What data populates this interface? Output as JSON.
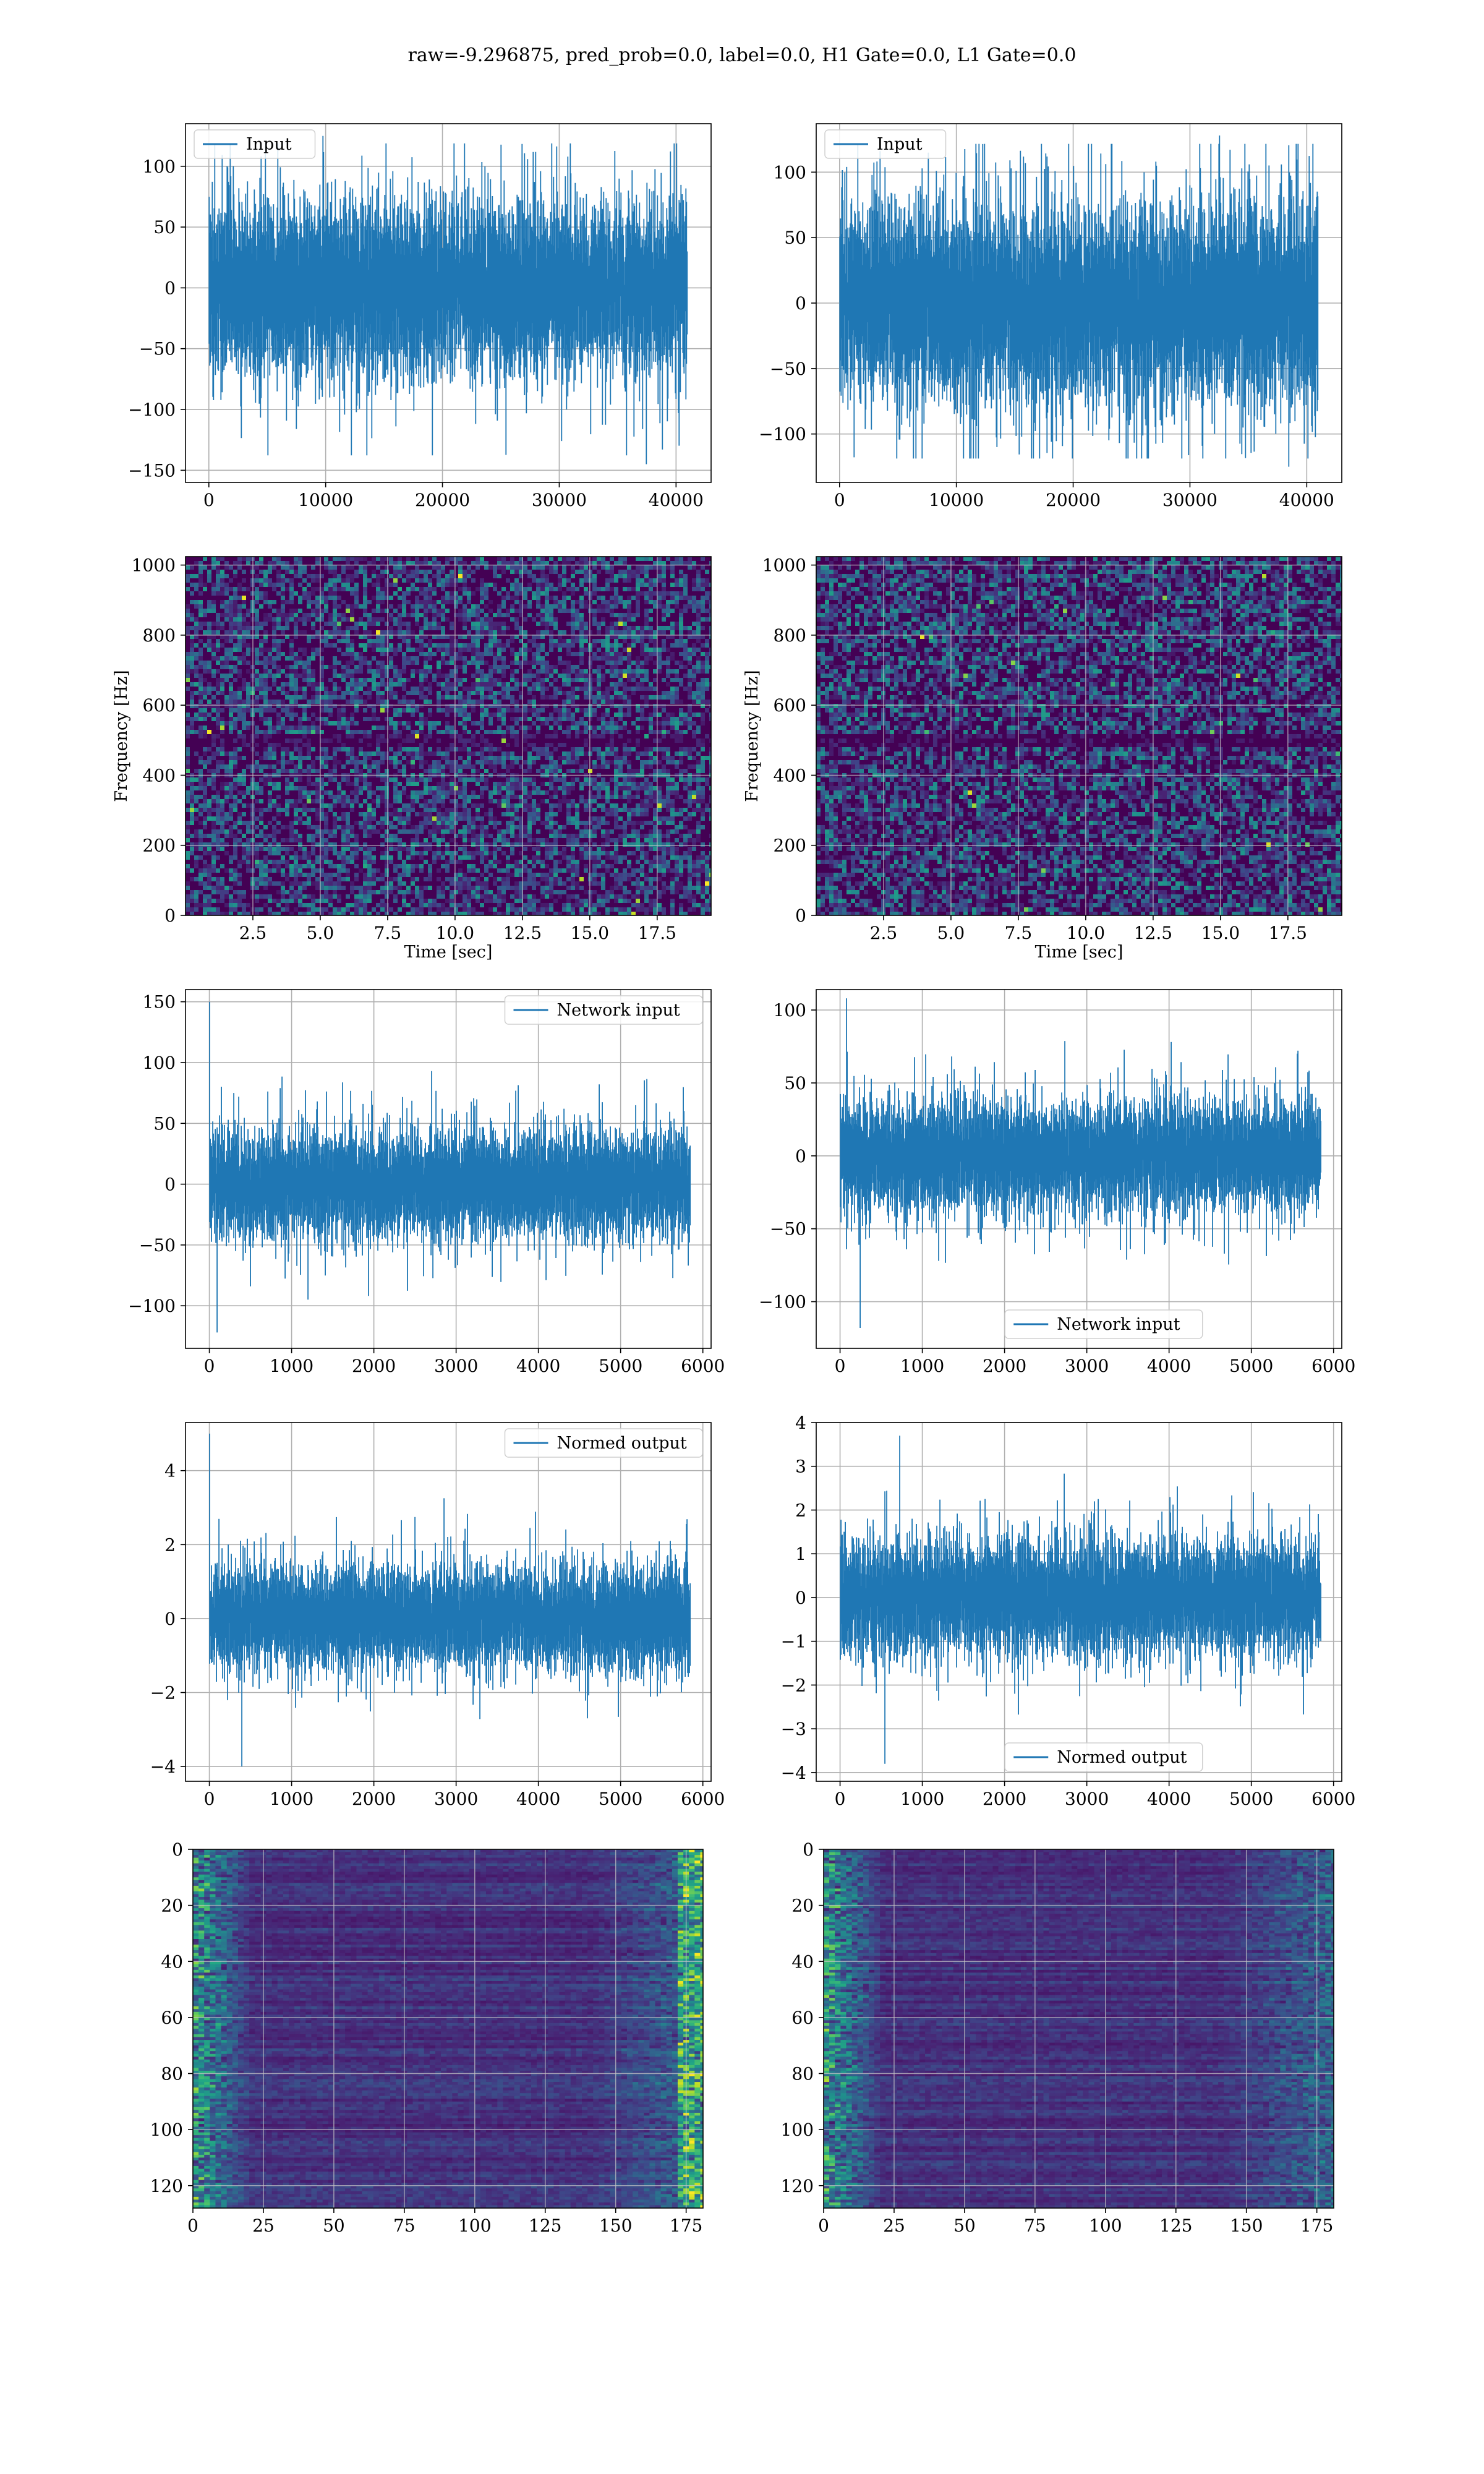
{
  "title": "raw=-9.296875, pred_prob=0.0, label=0.0, H1 Gate=0.0, L1 Gate=0.0",
  "colors": {
    "series": "#1f77b4",
    "grid": "#b0b0b0",
    "viridis_dark": "#440154"
  },
  "chart_data": [
    {
      "id": "p1",
      "type": "line",
      "legend": "Input",
      "legend_loc": "upper left",
      "xlim": [
        -2000,
        43000
      ],
      "ylim": [
        -160,
        135
      ],
      "xticks": [
        0,
        10000,
        20000,
        30000,
        40000
      ],
      "xtick_labels": [
        "0",
        "10000",
        "20000",
        "30000",
        "40000"
      ],
      "yticks": [
        -150,
        -100,
        -50,
        0,
        50,
        100
      ],
      "ytick_labels": [
        "−150",
        "−100",
        "−50",
        "0",
        "50",
        "100"
      ],
      "n": 40960,
      "band": [
        -65,
        65
      ],
      "peak_max": 125,
      "peak_min": -145,
      "xlabel": "",
      "ylabel": ""
    },
    {
      "id": "p2",
      "type": "line",
      "legend": "Input",
      "legend_loc": "upper left",
      "xlim": [
        -2000,
        43000
      ],
      "ylim": [
        -137,
        137
      ],
      "xticks": [
        0,
        10000,
        20000,
        30000,
        40000
      ],
      "xtick_labels": [
        "0",
        "10000",
        "20000",
        "30000",
        "40000"
      ],
      "yticks": [
        -100,
        -50,
        0,
        50,
        100
      ],
      "ytick_labels": [
        "−100",
        "−50",
        "0",
        "50",
        "100"
      ],
      "n": 40960,
      "band": [
        -70,
        70
      ],
      "peak_max": 128,
      "peak_min": -125,
      "xlabel": "",
      "ylabel": ""
    },
    {
      "id": "p3",
      "type": "heatmap",
      "xlim": [
        0,
        19.5
      ],
      "ylim": [
        0,
        1024
      ],
      "xticks": [
        2.5,
        5.0,
        7.5,
        10.0,
        12.5,
        15.0,
        17.5
      ],
      "xtick_labels": [
        "2.5",
        "5.0",
        "7.5",
        "10.0",
        "12.5",
        "15.0",
        "17.5"
      ],
      "yticks": [
        0,
        200,
        400,
        600,
        800,
        1000
      ],
      "ytick_labels": [
        "0",
        "200",
        "400",
        "600",
        "800",
        "1000"
      ],
      "xlabel": "Time [sec]",
      "ylabel": "Frequency [Hz]"
    },
    {
      "id": "p4",
      "type": "heatmap",
      "xlim": [
        0,
        19.5
      ],
      "ylim": [
        0,
        1024
      ],
      "xticks": [
        2.5,
        5.0,
        7.5,
        10.0,
        12.5,
        15.0,
        17.5
      ],
      "xtick_labels": [
        "2.5",
        "5.0",
        "7.5",
        "10.0",
        "12.5",
        "15.0",
        "17.5"
      ],
      "yticks": [
        0,
        200,
        400,
        600,
        800,
        1000
      ],
      "ytick_labels": [
        "0",
        "200",
        "400",
        "600",
        "800",
        "1000"
      ],
      "xlabel": "Time [sec]",
      "ylabel": "Frequency [Hz]"
    },
    {
      "id": "p5",
      "type": "line",
      "legend": "Network input",
      "legend_loc": "upper right",
      "xlim": [
        -290,
        6100
      ],
      "ylim": [
        -135,
        160
      ],
      "xticks": [
        0,
        1000,
        2000,
        3000,
        4000,
        5000,
        6000
      ],
      "xtick_labels": [
        "0",
        "1000",
        "2000",
        "3000",
        "4000",
        "5000",
        "6000"
      ],
      "yticks": [
        -100,
        -50,
        0,
        50,
        100,
        150
      ],
      "ytick_labels": [
        "−100",
        "−50",
        "0",
        "50",
        "100",
        "150"
      ],
      "n": 5850,
      "band": [
        -40,
        40
      ],
      "peak_max": 150,
      "peak_min": -122,
      "xlabel": "",
      "ylabel": ""
    },
    {
      "id": "p6",
      "type": "line",
      "legend": "Network input",
      "legend_loc": "lower center",
      "xlim": [
        -290,
        6100
      ],
      "ylim": [
        -132,
        114
      ],
      "xticks": [
        0,
        1000,
        2000,
        3000,
        4000,
        5000,
        6000
      ],
      "xtick_labels": [
        "0",
        "1000",
        "2000",
        "3000",
        "4000",
        "5000",
        "6000"
      ],
      "yticks": [
        -100,
        -50,
        0,
        50,
        100
      ],
      "ytick_labels": [
        "−100",
        "−50",
        "0",
        "50",
        "100"
      ],
      "n": 5850,
      "band": [
        -35,
        35
      ],
      "peak_max": 108,
      "peak_min": -118,
      "xlabel": "",
      "ylabel": ""
    },
    {
      "id": "p7",
      "type": "line",
      "legend": "Normed output",
      "legend_loc": "upper right",
      "xlim": [
        -290,
        6100
      ],
      "ylim": [
        -4.4,
        5.3
      ],
      "xticks": [
        0,
        1000,
        2000,
        3000,
        4000,
        5000,
        6000
      ],
      "xtick_labels": [
        "0",
        "1000",
        "2000",
        "3000",
        "4000",
        "5000",
        "6000"
      ],
      "yticks": [
        -4,
        -2,
        0,
        2,
        4
      ],
      "ytick_labels": [
        "−4",
        "−2",
        "0",
        "2",
        "4"
      ],
      "n": 5850,
      "band": [
        -1.3,
        1.3
      ],
      "peak_max": 5.0,
      "peak_min": -4.0,
      "xlabel": "",
      "ylabel": ""
    },
    {
      "id": "p8",
      "type": "line",
      "legend": "Normed output",
      "legend_loc": "lower center",
      "xlim": [
        -290,
        6100
      ],
      "ylim": [
        -4.2,
        4.0
      ],
      "xticks": [
        0,
        1000,
        2000,
        3000,
        4000,
        5000,
        6000
      ],
      "xtick_labels": [
        "0",
        "1000",
        "2000",
        "3000",
        "4000",
        "5000",
        "6000"
      ],
      "yticks": [
        -4,
        -3,
        -2,
        -1,
        0,
        1,
        2,
        3,
        4
      ],
      "ytick_labels": [
        "−4",
        "−3",
        "−2",
        "−1",
        "0",
        "1",
        "2",
        "3",
        "4"
      ],
      "n": 5850,
      "band": [
        -1.2,
        1.2
      ],
      "peak_max": 3.7,
      "peak_min": -3.8,
      "xlabel": "",
      "ylabel": ""
    },
    {
      "id": "p9",
      "type": "heatmap",
      "xlim": [
        0,
        181
      ],
      "ylim": [
        128,
        0
      ],
      "xticks": [
        0,
        25,
        50,
        75,
        100,
        125,
        150,
        175
      ],
      "xtick_labels": [
        "0",
        "25",
        "50",
        "75",
        "100",
        "125",
        "150",
        "175"
      ],
      "yticks": [
        0,
        20,
        40,
        60,
        80,
        100,
        120
      ],
      "ytick_labels": [
        "0",
        "20",
        "40",
        "60",
        "80",
        "100",
        "120"
      ],
      "xlabel": "",
      "ylabel": ""
    },
    {
      "id": "p10",
      "type": "heatmap",
      "xlim": [
        0,
        181
      ],
      "ylim": [
        128,
        0
      ],
      "xticks": [
        0,
        25,
        50,
        75,
        100,
        125,
        150,
        175
      ],
      "xtick_labels": [
        "0",
        "25",
        "50",
        "75",
        "100",
        "125",
        "150",
        "175"
      ],
      "yticks": [
        0,
        20,
        40,
        60,
        80,
        100,
        120
      ],
      "ytick_labels": [
        "0",
        "20",
        "40",
        "60",
        "80",
        "100",
        "120"
      ],
      "xlabel": "",
      "ylabel": ""
    }
  ]
}
